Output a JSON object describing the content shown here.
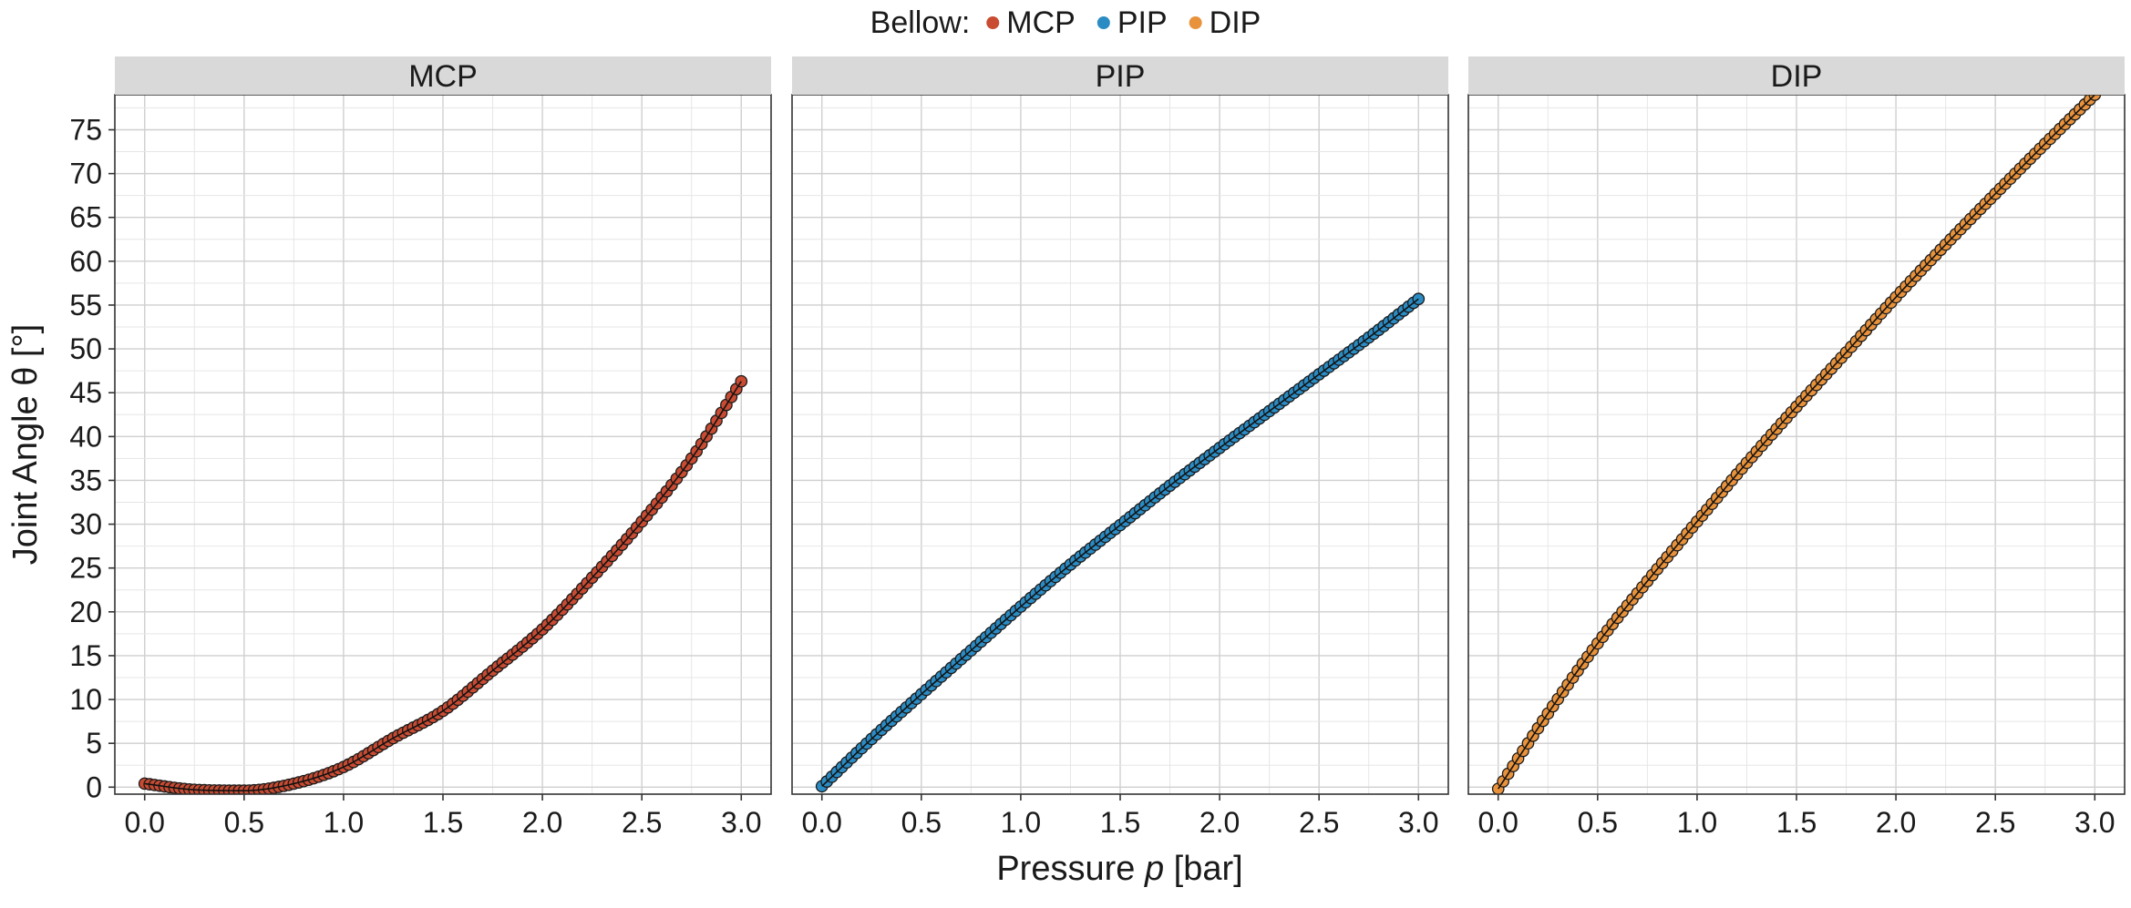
{
  "chart_data": {
    "type": "scatter",
    "legend": {
      "title": "Bellow:",
      "placement": "top"
    },
    "xlabel_parts": [
      "Pressure ",
      "p",
      " [bar]"
    ],
    "ylabel": "Joint Angle θ [°]",
    "xlim": [
      -0.15,
      3.15
    ],
    "ylim": [
      -0.8,
      79
    ],
    "x_ticks": [
      "0.0",
      "0.5",
      "1.0",
      "1.5",
      "2.0",
      "2.5",
      "3.0"
    ],
    "y_ticks": [
      "0",
      "5",
      "10",
      "15",
      "20",
      "25",
      "30",
      "35",
      "40",
      "45",
      "50",
      "55",
      "60",
      "65",
      "70",
      "75"
    ],
    "grid": true,
    "series": [
      {
        "name": "MCP",
        "color": "#C84B32",
        "x": [
          0.0,
          0.25,
          0.5,
          0.75,
          1.0,
          1.25,
          1.5,
          1.75,
          2.0,
          2.25,
          2.5,
          2.75,
          3.0
        ],
        "y": [
          0.4,
          -0.3,
          -0.4,
          0.4,
          2.3,
          5.6,
          8.7,
          13.3,
          18.0,
          23.9,
          30.3,
          37.5,
          46.3
        ]
      },
      {
        "name": "PIP",
        "color": "#2B8CC4",
        "x": [
          0.0,
          0.25,
          0.5,
          0.75,
          1.0,
          1.25,
          1.5,
          1.75,
          2.0,
          2.25,
          2.5,
          2.75,
          3.0
        ],
        "y": [
          0.1,
          5.5,
          10.6,
          15.6,
          20.6,
          25.4,
          29.9,
          34.4,
          38.7,
          42.9,
          47.1,
          51.3,
          55.7
        ]
      },
      {
        "name": "DIP",
        "color": "#E8923C",
        "x": [
          0.0,
          0.25,
          0.5,
          0.75,
          1.0,
          1.25,
          1.5,
          1.75,
          2.0,
          2.25,
          2.5,
          2.75,
          3.0
        ],
        "y": [
          -0.2,
          8.4,
          16.4,
          23.5,
          30.3,
          37.0,
          43.4,
          49.6,
          55.9,
          61.9,
          67.7,
          73.4,
          79.0
        ]
      }
    ]
  }
}
